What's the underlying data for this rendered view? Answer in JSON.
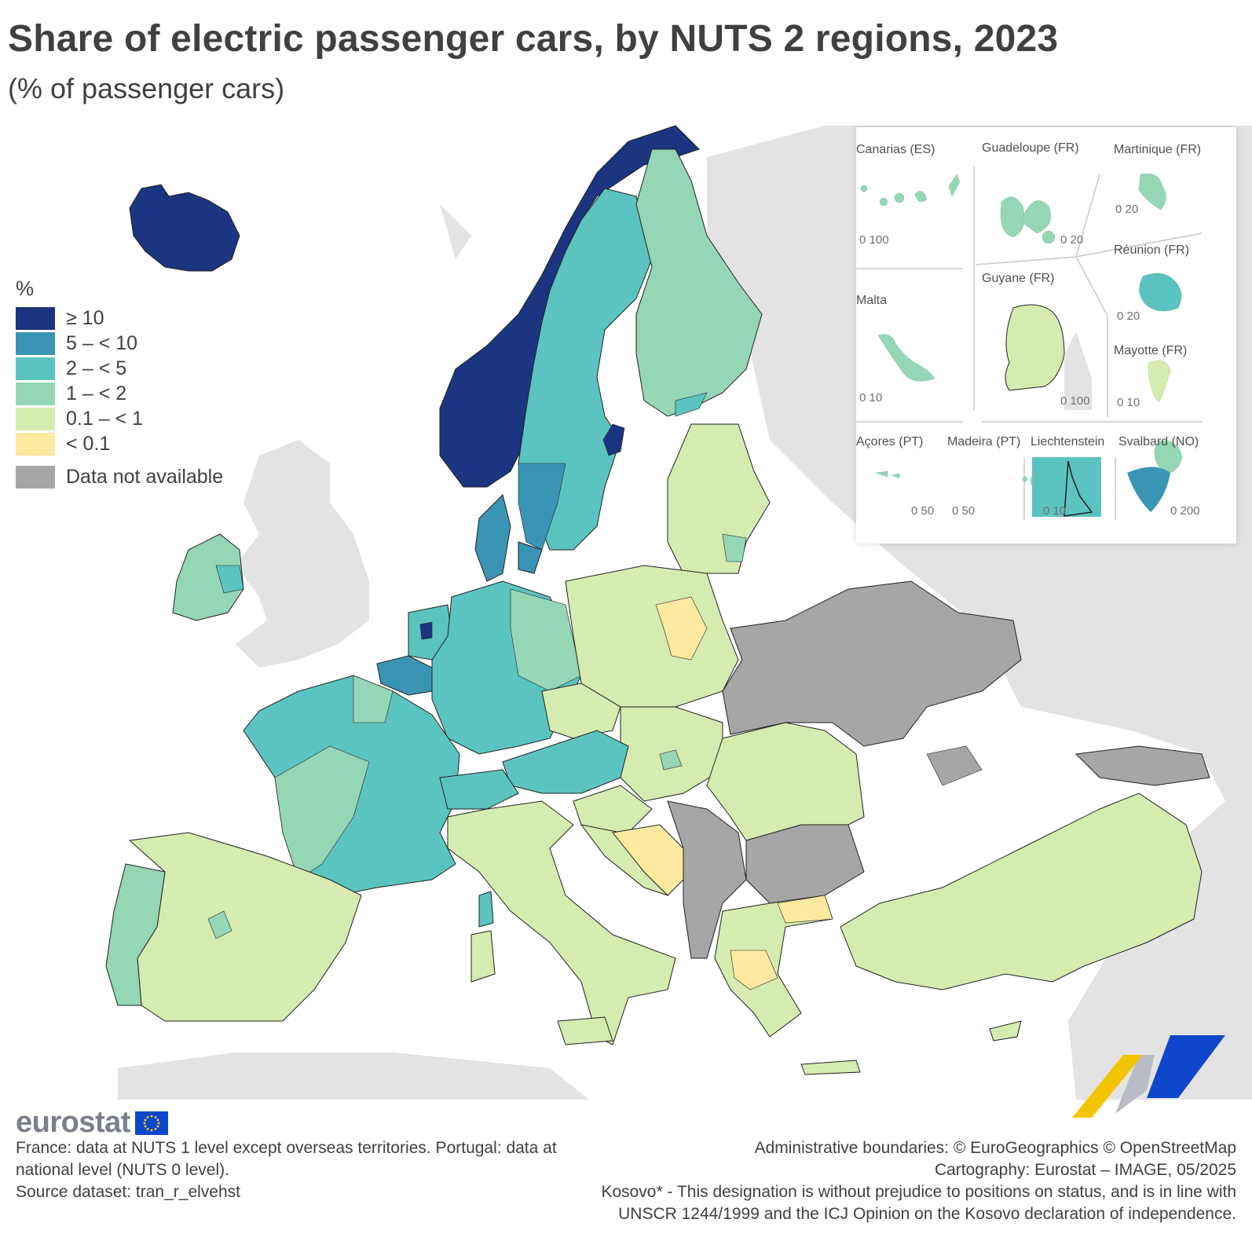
{
  "title": "Share of electric passenger cars, by NUTS 2 regions, 2023",
  "subtitle": "(% of passenger cars)",
  "legend": {
    "unit": "%",
    "items": [
      {
        "label": "≥ 10",
        "color": "#1b3580"
      },
      {
        "label": "5 – < 10",
        "color": "#3a95b5"
      },
      {
        "label": "2 – < 5",
        "color": "#5cc4c0"
      },
      {
        "label": "1 – < 2",
        "color": "#95d6b6"
      },
      {
        "label": "0.1 – < 1",
        "color": "#d6ebb0"
      },
      {
        "label": "< 0.1",
        "color": "#fde9a0"
      }
    ],
    "na": {
      "label": "Data not available",
      "color": "#a6a6a6"
    }
  },
  "colors": {
    "non_eu": "#e3e3e3",
    "sea": "#ffffff",
    "border": "#202020"
  },
  "insets": {
    "canarias": {
      "label": "Canarias (ES)",
      "scale": "0  100"
    },
    "guadeloupe": {
      "label": "Guadeloupe (FR)",
      "scale": "0  20"
    },
    "martinique": {
      "label": "Martinique (FR)",
      "scale": "0  20"
    },
    "reunion": {
      "label": "Réunion (FR)",
      "scale": "0  20"
    },
    "malta": {
      "label": "Malta",
      "scale": "0  10"
    },
    "guyane": {
      "label": "Guyane (FR)",
      "scale": "0  100"
    },
    "mayotte": {
      "label": "Mayotte (FR)",
      "scale": "0 10"
    },
    "acores": {
      "label": "Açores (PT)",
      "scale": "0 50"
    },
    "madeira": {
      "label": "Madeira (PT)",
      "scale": "0    50"
    },
    "liechtenstein": {
      "label": "Liechtenstein",
      "scale": "0  10"
    },
    "svalbard": {
      "label": "Svalbard (NO)",
      "scale": "0   200"
    }
  },
  "logo": {
    "word": "eurostat"
  },
  "footer_left": [
    "France: data at NUTS 1 level except overseas territories. Portugal: data at",
    "national level (NUTS 0 level).",
    "Source dataset: tran_r_elvehst"
  ],
  "footer_right": [
    "Administrative boundaries: © EuroGeographics © OpenStreetMap",
    "Cartography: Eurostat – IMAGE, 05/2025",
    "Kosovo* - This designation is without prejudice to positions on status, and is in line with",
    "UNSCR 1244/1999 and the ICJ Opinion on the Kosovo declaration of independence."
  ]
}
